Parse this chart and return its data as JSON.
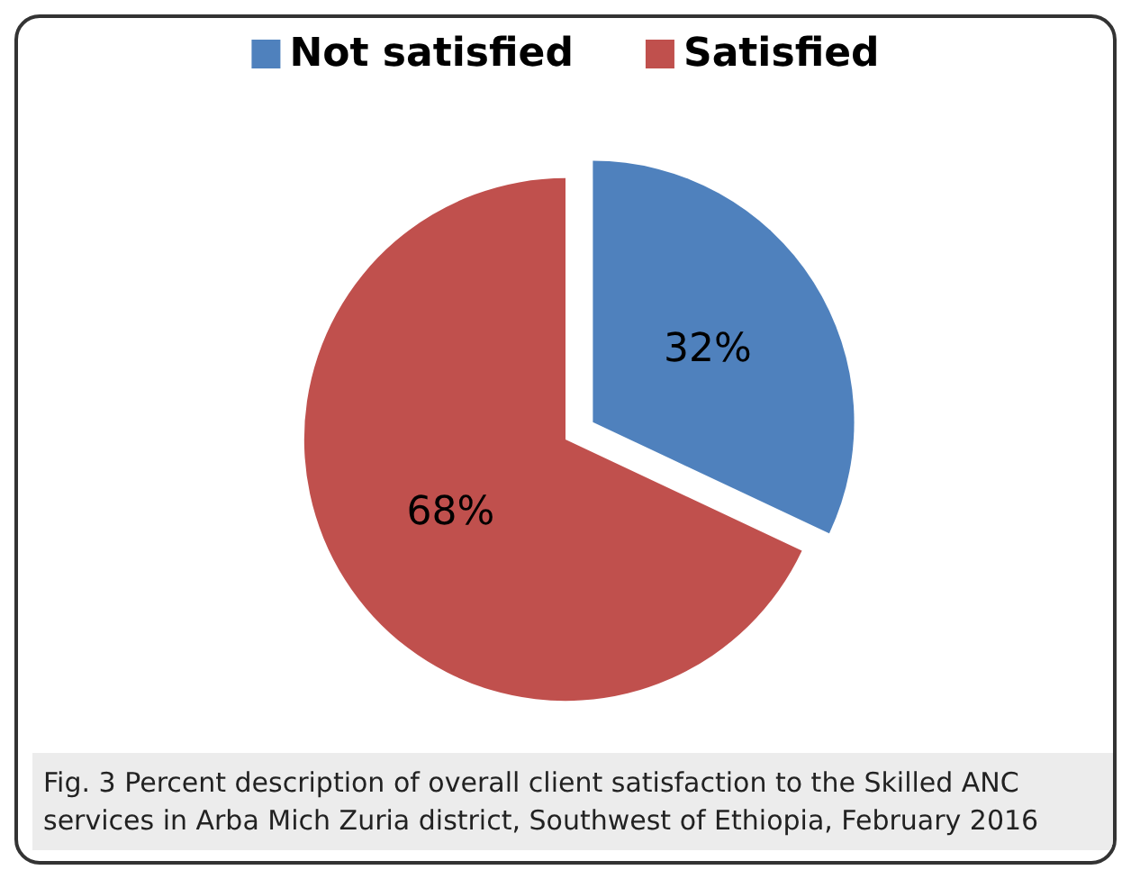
{
  "chart_data": {
    "type": "pie",
    "categories": [
      "Not satisfied",
      "Satisfied"
    ],
    "values": [
      32,
      68
    ],
    "colors": [
      "#4f81bd",
      "#c0504d"
    ],
    "value_labels": [
      "32%",
      "68%"
    ],
    "legend": "top",
    "annotations": [
      "Fig. 3 Percent description of overall client satisfaction to the Skilled ANC services in Arba Mich Zuria district, Southwest of Ethiopia, February 2016"
    ]
  }
}
